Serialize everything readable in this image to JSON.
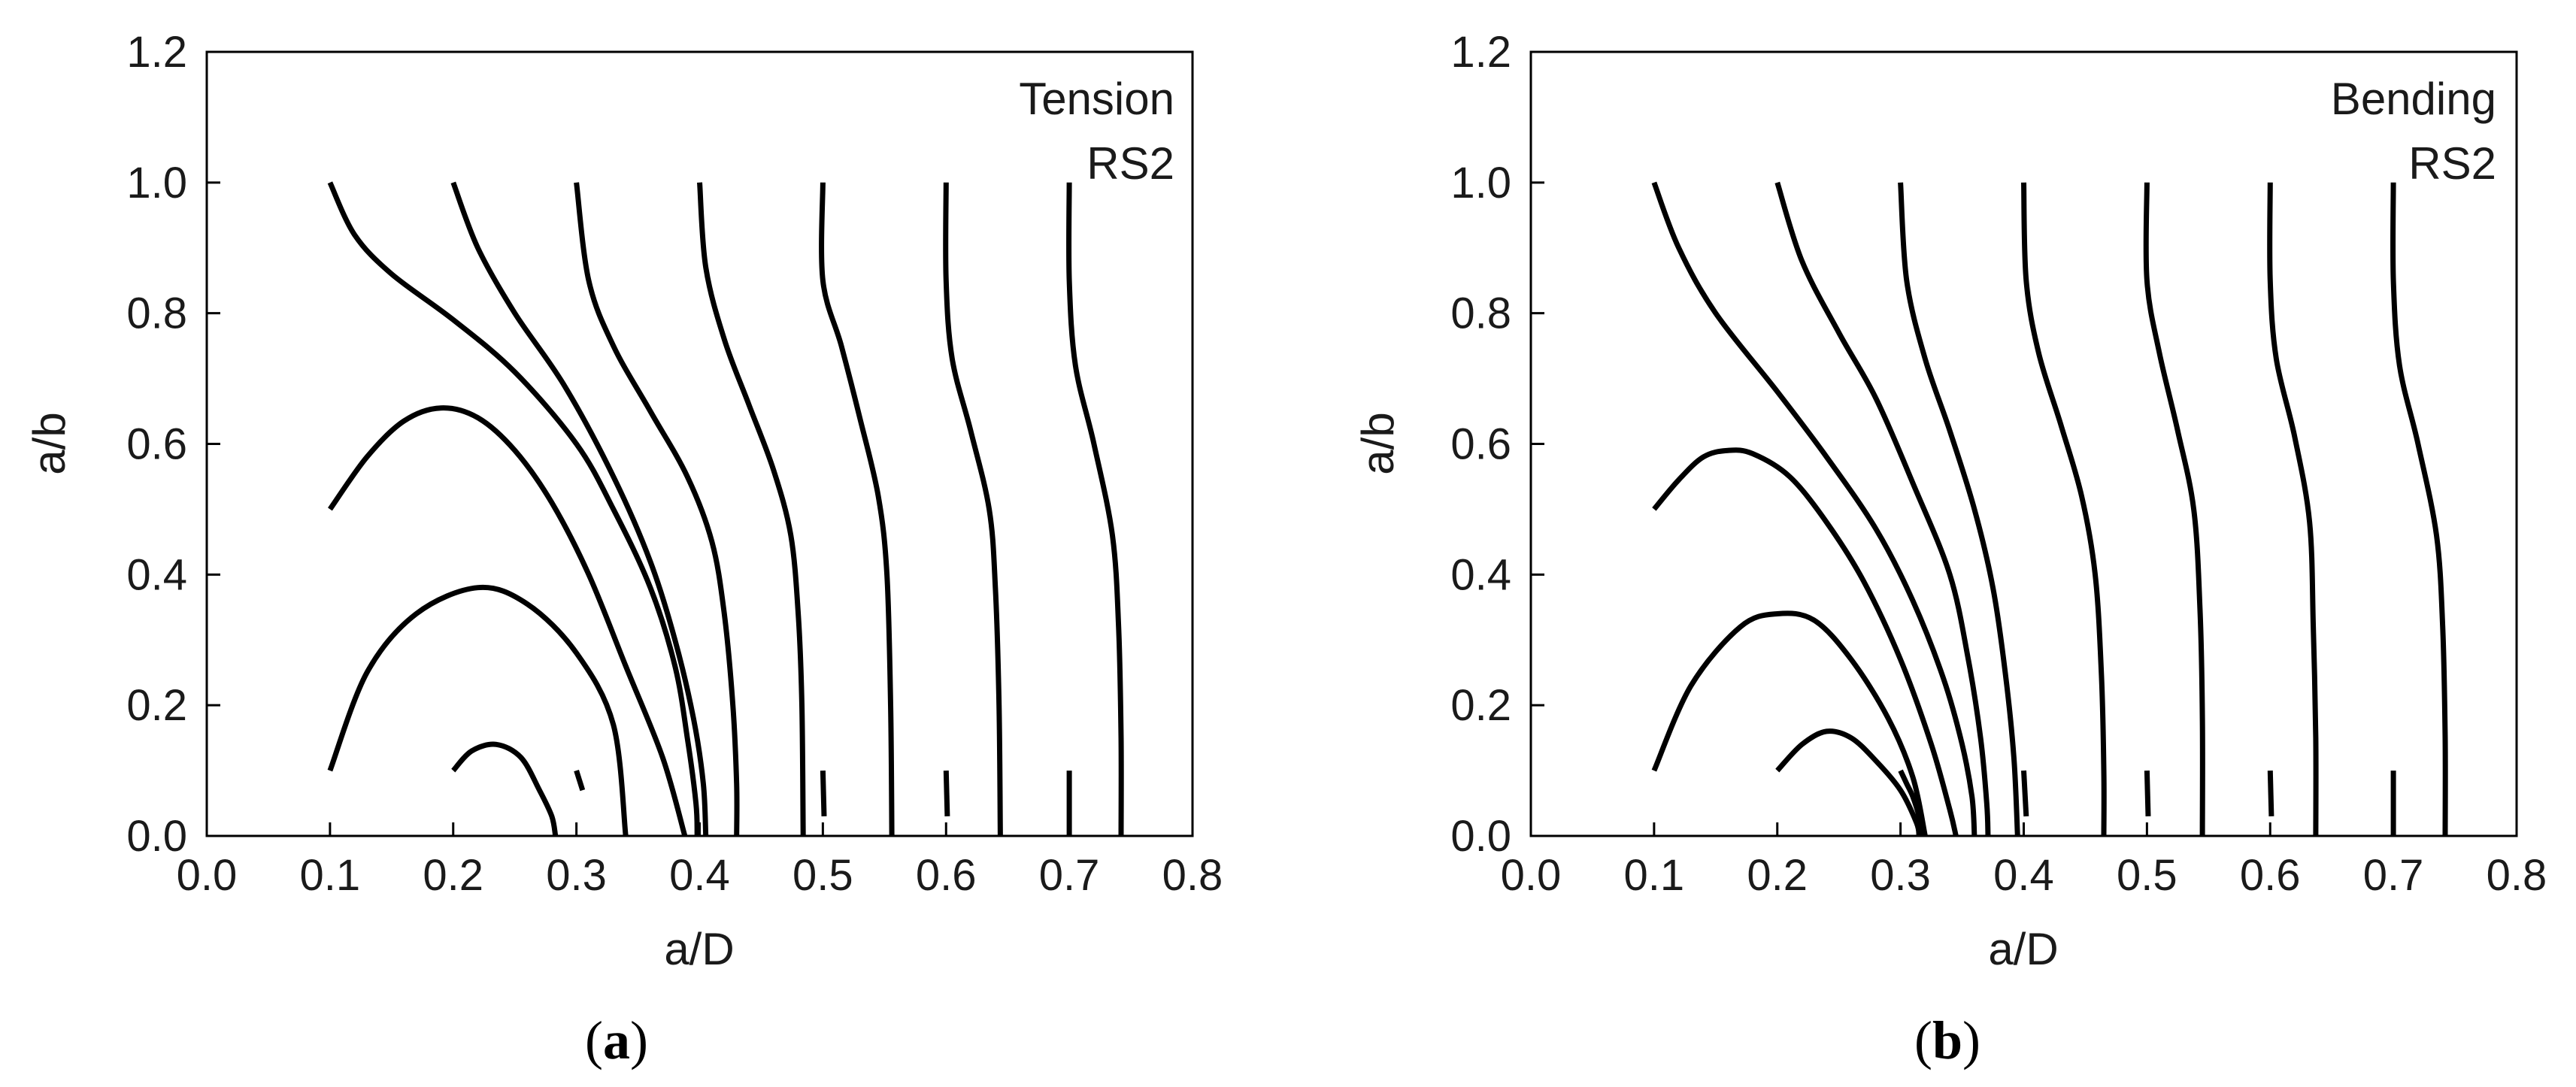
{
  "chart_data": [
    {
      "type": "line",
      "panel": "a",
      "caption": {
        "open": "(",
        "letter": "a",
        "close": ")"
      },
      "annotations": [
        "Tension",
        "RS2"
      ],
      "xlabel": "a/D",
      "ylabel": "a/b",
      "xlim": [
        0.0,
        0.8
      ],
      "ylim": [
        0.0,
        1.2
      ],
      "xticks": [
        "0.0",
        "0.1",
        "0.2",
        "0.3",
        "0.4",
        "0.5",
        "0.6",
        "0.7",
        "0.8"
      ],
      "yticks": [
        "0.0",
        "0.2",
        "0.4",
        "0.6",
        "0.8",
        "1.0",
        "1.2"
      ],
      "grid": false,
      "legend": "none",
      "series": [
        {
          "points": [
            [
              0.1,
              0.5
            ],
            [
              0.13,
              0.58
            ],
            [
              0.16,
              0.635
            ],
            [
              0.19,
              0.655
            ],
            [
              0.22,
              0.64
            ],
            [
              0.25,
              0.59
            ],
            [
              0.28,
              0.51
            ],
            [
              0.31,
              0.4
            ],
            [
              0.34,
              0.26
            ],
            [
              0.37,
              0.12
            ],
            [
              0.388,
              0.0
            ]
          ]
        },
        {
          "points": [
            [
              0.1,
              0.1
            ],
            [
              0.13,
              0.25
            ],
            [
              0.17,
              0.34
            ],
            [
              0.22,
              0.38
            ],
            [
              0.26,
              0.355
            ],
            [
              0.3,
              0.28
            ],
            [
              0.33,
              0.17
            ],
            [
              0.34,
              0.0
            ]
          ]
        },
        {
          "points": [
            [
              0.2,
              0.1
            ],
            [
              0.215,
              0.13
            ],
            [
              0.235,
              0.14
            ],
            [
              0.255,
              0.12
            ],
            [
              0.27,
              0.07
            ],
            [
              0.28,
              0.03
            ],
            [
              0.283,
              0.0
            ]
          ]
        },
        {
          "points": [
            [
              0.3,
              0.1
            ],
            [
              0.305,
              0.07
            ]
          ]
        },
        {
          "points": [
            [
              0.1,
              1.0
            ],
            [
              0.12,
              0.92
            ],
            [
              0.15,
              0.86
            ],
            [
              0.2,
              0.79
            ],
            [
              0.25,
              0.71
            ],
            [
              0.3,
              0.6
            ],
            [
              0.33,
              0.5
            ],
            [
              0.36,
              0.38
            ],
            [
              0.38,
              0.26
            ],
            [
              0.39,
              0.15
            ],
            [
              0.397,
              0.05
            ],
            [
              0.398,
              0.0
            ]
          ]
        },
        {
          "points": [
            [
              0.2,
              1.0
            ],
            [
              0.22,
              0.9
            ],
            [
              0.25,
              0.8
            ],
            [
              0.29,
              0.69
            ],
            [
              0.33,
              0.55
            ],
            [
              0.36,
              0.42
            ],
            [
              0.38,
              0.3
            ],
            [
              0.395,
              0.18
            ],
            [
              0.403,
              0.08
            ],
            [
              0.405,
              0.0
            ]
          ]
        },
        {
          "points": [
            [
              0.3,
              1.0
            ],
            [
              0.31,
              0.85
            ],
            [
              0.33,
              0.75
            ],
            [
              0.36,
              0.65
            ],
            [
              0.39,
              0.55
            ],
            [
              0.41,
              0.45
            ],
            [
              0.42,
              0.34
            ],
            [
              0.427,
              0.2
            ],
            [
              0.43,
              0.08
            ],
            [
              0.43,
              0.0
            ]
          ]
        },
        {
          "points": [
            [
              0.4,
              1.0
            ],
            [
              0.405,
              0.87
            ],
            [
              0.42,
              0.76
            ],
            [
              0.44,
              0.66
            ],
            [
              0.46,
              0.56
            ],
            [
              0.474,
              0.46
            ],
            [
              0.48,
              0.34
            ],
            [
              0.483,
              0.2
            ],
            [
              0.484,
              0.0
            ]
          ]
        },
        {
          "points": [
            [
              0.5,
              1.0
            ],
            [
              0.5,
              0.85
            ],
            [
              0.515,
              0.75
            ],
            [
              0.53,
              0.64
            ],
            [
              0.545,
              0.52
            ],
            [
              0.552,
              0.4
            ],
            [
              0.555,
              0.2
            ],
            [
              0.556,
              0.0
            ]
          ]
        },
        {
          "points": [
            [
              0.6,
              1.0
            ],
            [
              0.6,
              0.85
            ],
            [
              0.605,
              0.73
            ],
            [
              0.62,
              0.62
            ],
            [
              0.635,
              0.5
            ],
            [
              0.64,
              0.38
            ],
            [
              0.643,
              0.2
            ],
            [
              0.644,
              0.0
            ]
          ]
        },
        {
          "points": [
            [
              0.7,
              1.0
            ],
            [
              0.7,
              0.85
            ],
            [
              0.705,
              0.72
            ],
            [
              0.72,
              0.6
            ],
            [
              0.735,
              0.46
            ],
            [
              0.74,
              0.32
            ],
            [
              0.742,
              0.15
            ],
            [
              0.742,
              0.0
            ]
          ]
        },
        {
          "points": [
            [
              0.5,
              0.1
            ],
            [
              0.501,
              0.03
            ]
          ]
        },
        {
          "points": [
            [
              0.6,
              0.1
            ],
            [
              0.601,
              0.03
            ]
          ]
        },
        {
          "points": [
            [
              0.7,
              0.1
            ],
            [
              0.7,
              0.0
            ]
          ]
        }
      ]
    },
    {
      "type": "line",
      "panel": "b",
      "caption": {
        "open": "(",
        "letter": "b",
        "close": ")"
      },
      "annotations": [
        "Bending",
        "RS2"
      ],
      "xlabel": "a/D",
      "ylabel": "a/b",
      "xlim": [
        0.0,
        0.8
      ],
      "ylim": [
        0.0,
        1.2
      ],
      "xticks": [
        "0.0",
        "0.1",
        "0.2",
        "0.3",
        "0.4",
        "0.5",
        "0.6",
        "0.7",
        "0.8"
      ],
      "yticks": [
        "0.0",
        "0.2",
        "0.4",
        "0.6",
        "0.8",
        "1.0",
        "1.2"
      ],
      "grid": false,
      "legend": "none",
      "series": [
        {
          "points": [
            [
              0.1,
              0.5
            ],
            [
              0.12,
              0.545
            ],
            [
              0.14,
              0.58
            ],
            [
              0.16,
              0.59
            ],
            [
              0.18,
              0.585
            ],
            [
              0.21,
              0.55
            ],
            [
              0.24,
              0.48
            ],
            [
              0.27,
              0.39
            ],
            [
              0.3,
              0.27
            ],
            [
              0.325,
              0.14
            ],
            [
              0.34,
              0.04
            ],
            [
              0.345,
              0.0
            ]
          ]
        },
        {
          "points": [
            [
              0.1,
              0.1
            ],
            [
              0.13,
              0.23
            ],
            [
              0.17,
              0.32
            ],
            [
              0.2,
              0.34
            ],
            [
              0.23,
              0.33
            ],
            [
              0.26,
              0.27
            ],
            [
              0.29,
              0.18
            ],
            [
              0.31,
              0.09
            ],
            [
              0.32,
              0.0
            ]
          ]
        },
        {
          "points": [
            [
              0.2,
              0.1
            ],
            [
              0.22,
              0.14
            ],
            [
              0.24,
              0.16
            ],
            [
              0.26,
              0.15
            ],
            [
              0.28,
              0.115
            ],
            [
              0.3,
              0.07
            ],
            [
              0.313,
              0.02
            ],
            [
              0.315,
              0.0
            ]
          ]
        },
        {
          "points": [
            [
              0.3,
              0.1
            ],
            [
              0.305,
              0.08
            ],
            [
              0.31,
              0.06
            ],
            [
              0.315,
              0.03
            ],
            [
              0.318,
              0.0
            ]
          ]
        },
        {
          "points": [
            [
              0.1,
              1.0
            ],
            [
              0.12,
              0.9
            ],
            [
              0.15,
              0.8
            ],
            [
              0.2,
              0.68
            ],
            [
              0.24,
              0.58
            ],
            [
              0.28,
              0.47
            ],
            [
              0.31,
              0.36
            ],
            [
              0.335,
              0.24
            ],
            [
              0.35,
              0.14
            ],
            [
              0.358,
              0.06
            ],
            [
              0.36,
              0.0
            ]
          ]
        },
        {
          "points": [
            [
              0.2,
              1.0
            ],
            [
              0.22,
              0.88
            ],
            [
              0.25,
              0.77
            ],
            [
              0.28,
              0.67
            ],
            [
              0.31,
              0.54
            ],
            [
              0.34,
              0.4
            ],
            [
              0.355,
              0.27
            ],
            [
              0.365,
              0.15
            ],
            [
              0.37,
              0.05
            ],
            [
              0.371,
              0.0
            ]
          ]
        },
        {
          "points": [
            [
              0.3,
              1.0
            ],
            [
              0.305,
              0.85
            ],
            [
              0.32,
              0.73
            ],
            [
              0.34,
              0.62
            ],
            [
              0.36,
              0.5
            ],
            [
              0.375,
              0.38
            ],
            [
              0.385,
              0.25
            ],
            [
              0.392,
              0.12
            ],
            [
              0.395,
              0.0
            ]
          ]
        },
        {
          "points": [
            [
              0.4,
              1.0
            ],
            [
              0.402,
              0.85
            ],
            [
              0.412,
              0.74
            ],
            [
              0.43,
              0.63
            ],
            [
              0.447,
              0.52
            ],
            [
              0.458,
              0.4
            ],
            [
              0.463,
              0.25
            ],
            [
              0.465,
              0.1
            ],
            [
              0.465,
              0.0
            ]
          ]
        },
        {
          "points": [
            [
              0.5,
              1.0
            ],
            [
              0.5,
              0.85
            ],
            [
              0.51,
              0.74
            ],
            [
              0.525,
              0.62
            ],
            [
              0.538,
              0.5
            ],
            [
              0.543,
              0.35
            ],
            [
              0.545,
              0.18
            ],
            [
              0.545,
              0.0
            ]
          ]
        },
        {
          "points": [
            [
              0.6,
              1.0
            ],
            [
              0.6,
              0.85
            ],
            [
              0.605,
              0.73
            ],
            [
              0.62,
              0.61
            ],
            [
              0.632,
              0.48
            ],
            [
              0.635,
              0.32
            ],
            [
              0.637,
              0.15
            ],
            [
              0.637,
              0.0
            ]
          ]
        },
        {
          "points": [
            [
              0.7,
              1.0
            ],
            [
              0.7,
              0.85
            ],
            [
              0.705,
              0.72
            ],
            [
              0.72,
              0.6
            ],
            [
              0.735,
              0.46
            ],
            [
              0.74,
              0.32
            ],
            [
              0.742,
              0.15
            ],
            [
              0.742,
              0.0
            ]
          ]
        },
        {
          "points": [
            [
              0.4,
              0.1
            ],
            [
              0.402,
              0.03
            ]
          ]
        },
        {
          "points": [
            [
              0.5,
              0.1
            ],
            [
              0.501,
              0.03
            ]
          ]
        },
        {
          "points": [
            [
              0.6,
              0.1
            ],
            [
              0.601,
              0.03
            ]
          ]
        },
        {
          "points": [
            [
              0.7,
              0.1
            ],
            [
              0.7,
              0.0
            ]
          ]
        }
      ]
    }
  ]
}
